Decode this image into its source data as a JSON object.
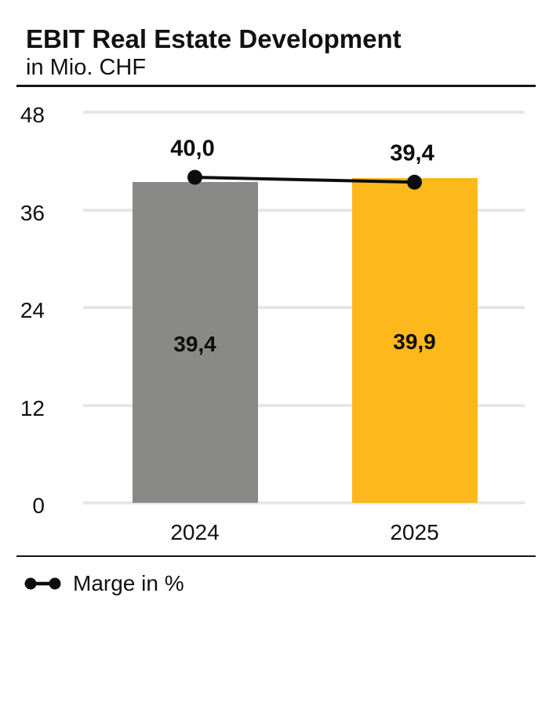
{
  "header": {
    "title": "EBIT Real Estate Development",
    "subtitle": "in Mio. CHF"
  },
  "legend": {
    "label": "Marge in %"
  },
  "chart_data": {
    "type": "bar",
    "categories": [
      "2024",
      "2025"
    ],
    "series": [
      {
        "name": "EBIT in Mio. CHF",
        "type": "bar",
        "values": [
          39.4,
          39.9
        ],
        "data_labels": [
          "39,4",
          "39,9"
        ],
        "colors": [
          "#898987",
          "#FDB81C"
        ],
        "label_position": "inside-middle"
      },
      {
        "name": "Marge in %",
        "type": "line",
        "values": [
          40.0,
          39.4
        ],
        "data_labels": [
          "40,0",
          "39,4"
        ],
        "color": "#0d0d0d",
        "marker": "circle",
        "label_position": "above"
      }
    ],
    "title": "EBIT Real Estate Development",
    "subtitle": "in Mio. CHF",
    "xlabel": "",
    "ylabel": "",
    "ylim": [
      0,
      48
    ],
    "yticks": [
      "0",
      "12",
      "24",
      "36",
      "48"
    ],
    "grid": true,
    "gridline_color": "#e7e7e7",
    "legend_position": "bottom-left"
  }
}
